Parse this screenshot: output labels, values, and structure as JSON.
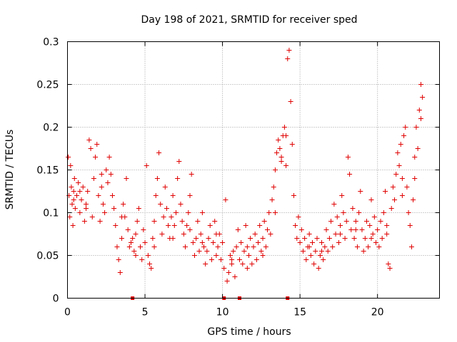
{
  "chart_data": {
    "type": "scatter",
    "title": "Day 198 of 2021, SRMTID for receiver sped",
    "xlabel": "GPS time / hours",
    "ylabel": "SRMTID / TECUs",
    "xlim": [
      0,
      24
    ],
    "ylim": [
      0,
      0.3
    ],
    "x_tick_labels": [
      "0",
      "5",
      "10",
      "15",
      "20"
    ],
    "x_ticks": [
      0,
      5,
      10,
      15,
      20
    ],
    "y_tick_labels": [
      "0",
      "0.05",
      "0.1",
      "0.15",
      "0.2",
      "0.25",
      "0.3"
    ],
    "y_ticks": [
      0,
      0.05,
      0.1,
      0.15,
      0.2,
      0.25,
      0.3
    ],
    "grid": true,
    "marker": "plus",
    "color": "#e00000",
    "description_points": "dense scatter of SRMTID values by hour; points listed as [hour, value]",
    "points": [
      [
        0.05,
        0.165
      ],
      [
        0.1,
        0.12
      ],
      [
        0.15,
        0.095
      ],
      [
        0.2,
        0.155
      ],
      [
        0.25,
        0.13
      ],
      [
        0.3,
        0.11
      ],
      [
        0.35,
        0.085
      ],
      [
        0.4,
        0.125
      ],
      [
        0.45,
        0.14
      ],
      [
        0.5,
        0.105
      ],
      [
        0.6,
        0.12
      ],
      [
        0.7,
        0.135
      ],
      [
        0.8,
        0.1
      ],
      [
        0.9,
        0.115
      ],
      [
        1.0,
        0.13
      ],
      [
        1.1,
        0.09
      ],
      [
        1.2,
        0.11
      ],
      [
        1.3,
        0.125
      ],
      [
        1.4,
        0.185
      ],
      [
        1.5,
        0.175
      ],
      [
        1.6,
        0.095
      ],
      [
        1.7,
        0.14
      ],
      [
        1.8,
        0.165
      ],
      [
        1.9,
        0.18
      ],
      [
        2.0,
        0.12
      ],
      [
        2.1,
        0.09
      ],
      [
        2.2,
        0.13
      ],
      [
        2.3,
        0.11
      ],
      [
        2.4,
        0.1
      ],
      [
        2.5,
        0.15
      ],
      [
        2.6,
        0.135
      ],
      [
        2.7,
        0.165
      ],
      [
        2.8,
        0.145
      ],
      [
        2.9,
        0.12
      ],
      [
        3.0,
        0.105
      ],
      [
        3.1,
        0.085
      ],
      [
        3.2,
        0.06
      ],
      [
        3.3,
        0.045
      ],
      [
        3.4,
        0.03
      ],
      [
        3.5,
        0.07
      ],
      [
        3.6,
        0.11
      ],
      [
        3.7,
        0.095
      ],
      [
        3.8,
        0.14
      ],
      [
        3.9,
        0.08
      ],
      [
        4.0,
        0.06
      ],
      [
        4.1,
        0.065
      ],
      [
        4.2,
        0.07
      ],
      [
        4.3,
        0.055
      ],
      [
        4.4,
        0.075
      ],
      [
        4.5,
        0.09
      ],
      [
        4.6,
        0.105
      ],
      [
        4.7,
        0.06
      ],
      [
        4.8,
        0.045
      ],
      [
        4.9,
        0.08
      ],
      [
        5.0,
        0.065
      ],
      [
        5.1,
        0.155
      ],
      [
        5.2,
        0.05
      ],
      [
        5.3,
        0.04
      ],
      [
        5.4,
        0.035
      ],
      [
        5.5,
        0.07
      ],
      [
        5.6,
        0.09
      ],
      [
        5.7,
        0.12
      ],
      [
        5.8,
        0.14
      ],
      [
        5.9,
        0.17
      ],
      [
        6.0,
        0.11
      ],
      [
        6.1,
        0.075
      ],
      [
        6.2,
        0.095
      ],
      [
        6.3,
        0.13
      ],
      [
        6.4,
        0.105
      ],
      [
        6.5,
        0.085
      ],
      [
        6.6,
        0.07
      ],
      [
        6.7,
        0.095
      ],
      [
        6.8,
        0.12
      ],
      [
        6.9,
        0.085
      ],
      [
        7.0,
        0.1
      ],
      [
        7.1,
        0.14
      ],
      [
        7.2,
        0.16
      ],
      [
        7.3,
        0.11
      ],
      [
        7.4,
        0.09
      ],
      [
        7.5,
        0.075
      ],
      [
        7.6,
        0.06
      ],
      [
        7.7,
        0.085
      ],
      [
        7.8,
        0.1
      ],
      [
        7.9,
        0.12
      ],
      [
        8.0,
        0.145
      ],
      [
        8.1,
        0.065
      ],
      [
        8.2,
        0.05
      ],
      [
        8.3,
        0.07
      ],
      [
        8.4,
        0.09
      ],
      [
        8.5,
        0.055
      ],
      [
        8.6,
        0.075
      ],
      [
        8.7,
        0.1
      ],
      [
        8.8,
        0.06
      ],
      [
        8.9,
        0.04
      ],
      [
        9.0,
        0.055
      ],
      [
        9.1,
        0.07
      ],
      [
        9.2,
        0.085
      ],
      [
        9.3,
        0.045
      ],
      [
        9.4,
        0.065
      ],
      [
        9.5,
        0.09
      ],
      [
        9.6,
        0.05
      ],
      [
        9.7,
        0.06
      ],
      [
        9.8,
        0.075
      ],
      [
        9.9,
        0.045
      ],
      [
        10.0,
        0.065
      ],
      [
        10.1,
        0.035
      ],
      [
        10.2,
        0.115
      ],
      [
        10.3,
        0.02
      ],
      [
        10.4,
        0.03
      ],
      [
        10.5,
        0.05
      ],
      [
        10.6,
        0.04
      ],
      [
        10.7,
        0.055
      ],
      [
        10.8,
        0.025
      ],
      [
        10.9,
        0.06
      ],
      [
        11.0,
        0.08
      ],
      [
        11.1,
        0.045
      ],
      [
        11.2,
        0.065
      ],
      [
        11.3,
        0.04
      ],
      [
        11.4,
        0.055
      ],
      [
        11.5,
        0.085
      ],
      [
        11.6,
        0.035
      ],
      [
        11.7,
        0.05
      ],
      [
        11.8,
        0.07
      ],
      [
        11.9,
        0.04
      ],
      [
        12.0,
        0.06
      ],
      [
        12.1,
        0.075
      ],
      [
        12.2,
        0.045
      ],
      [
        12.3,
        0.065
      ],
      [
        12.4,
        0.085
      ],
      [
        12.5,
        0.055
      ],
      [
        12.6,
        0.07
      ],
      [
        12.7,
        0.09
      ],
      [
        12.8,
        0.06
      ],
      [
        12.9,
        0.08
      ],
      [
        13.0,
        0.1
      ],
      [
        13.1,
        0.075
      ],
      [
        13.2,
        0.115
      ],
      [
        13.3,
        0.13
      ],
      [
        13.4,
        0.15
      ],
      [
        13.5,
        0.17
      ],
      [
        13.6,
        0.185
      ],
      [
        13.7,
        0.175
      ],
      [
        13.8,
        0.16
      ],
      [
        13.9,
        0.19
      ],
      [
        14.0,
        0.2
      ],
      [
        14.1,
        0.155
      ],
      [
        14.2,
        0.28
      ],
      [
        14.3,
        0.29
      ],
      [
        14.4,
        0.23
      ],
      [
        14.5,
        0.18
      ],
      [
        14.6,
        0.12
      ],
      [
        14.7,
        0.085
      ],
      [
        14.8,
        0.07
      ],
      [
        14.9,
        0.095
      ],
      [
        15.0,
        0.065
      ],
      [
        15.1,
        0.08
      ],
      [
        15.2,
        0.055
      ],
      [
        15.3,
        0.07
      ],
      [
        15.4,
        0.045
      ],
      [
        15.5,
        0.06
      ],
      [
        15.6,
        0.075
      ],
      [
        15.7,
        0.05
      ],
      [
        15.8,
        0.065
      ],
      [
        15.9,
        0.04
      ],
      [
        16.0,
        0.055
      ],
      [
        16.1,
        0.07
      ],
      [
        16.2,
        0.035
      ],
      [
        16.3,
        0.05
      ],
      [
        16.4,
        0.065
      ],
      [
        16.5,
        0.045
      ],
      [
        16.6,
        0.06
      ],
      [
        16.7,
        0.08
      ],
      [
        16.8,
        0.055
      ],
      [
        16.9,
        0.07
      ],
      [
        17.0,
        0.09
      ],
      [
        17.1,
        0.06
      ],
      [
        17.2,
        0.11
      ],
      [
        17.3,
        0.075
      ],
      [
        17.4,
        0.095
      ],
      [
        17.5,
        0.065
      ],
      [
        17.6,
        0.085
      ],
      [
        17.7,
        0.12
      ],
      [
        17.8,
        0.1
      ],
      [
        17.9,
        0.07
      ],
      [
        18.0,
        0.09
      ],
      [
        18.1,
        0.165
      ],
      [
        18.2,
        0.145
      ],
      [
        18.3,
        0.08
      ],
      [
        18.4,
        0.105
      ],
      [
        18.5,
        0.07
      ],
      [
        18.6,
        0.09
      ],
      [
        18.7,
        0.06
      ],
      [
        18.8,
        0.1
      ],
      [
        18.9,
        0.125
      ],
      [
        19.0,
        0.08
      ],
      [
        19.1,
        0.055
      ],
      [
        19.2,
        0.07
      ],
      [
        19.3,
        0.09
      ],
      [
        19.4,
        0.06
      ],
      [
        19.5,
        0.085
      ],
      [
        19.6,
        0.115
      ],
      [
        19.7,
        0.075
      ],
      [
        19.8,
        0.095
      ],
      [
        19.9,
        0.065
      ],
      [
        20.0,
        0.08
      ],
      [
        20.1,
        0.06
      ],
      [
        20.2,
        0.09
      ],
      [
        20.3,
        0.07
      ],
      [
        20.4,
        0.1
      ],
      [
        20.5,
        0.125
      ],
      [
        20.6,
        0.085
      ],
      [
        20.7,
        0.04
      ],
      [
        20.8,
        0.035
      ],
      [
        20.9,
        0.105
      ],
      [
        21.0,
        0.13
      ],
      [
        21.1,
        0.115
      ],
      [
        21.2,
        0.145
      ],
      [
        21.3,
        0.17
      ],
      [
        21.4,
        0.155
      ],
      [
        21.5,
        0.18
      ],
      [
        21.6,
        0.14
      ],
      [
        21.7,
        0.19
      ],
      [
        21.8,
        0.2
      ],
      [
        21.9,
        0.13
      ],
      [
        22.0,
        0.1
      ],
      [
        22.1,
        0.085
      ],
      [
        22.2,
        0.06
      ],
      [
        22.3,
        0.115
      ],
      [
        22.4,
        0.165
      ],
      [
        22.5,
        0.2
      ],
      [
        22.6,
        0.175
      ],
      [
        22.7,
        0.22
      ],
      [
        22.8,
        0.25
      ],
      [
        22.9,
        0.235
      ],
      [
        0.4,
        0.115
      ],
      [
        0.8,
        0.125
      ],
      [
        1.2,
        0.105
      ],
      [
        2.2,
        0.145
      ],
      [
        3.5,
        0.095
      ],
      [
        4.4,
        0.05
      ],
      [
        5.6,
        0.06
      ],
      [
        6.8,
        0.07
      ],
      [
        7.9,
        0.08
      ],
      [
        8.7,
        0.065
      ],
      [
        9.6,
        0.075
      ],
      [
        10.6,
        0.045
      ],
      [
        11.6,
        0.06
      ],
      [
        12.6,
        0.05
      ],
      [
        13.4,
        0.1
      ],
      [
        13.8,
        0.165
      ],
      [
        14.1,
        0.19
      ],
      [
        15.6,
        0.06
      ],
      [
        16.4,
        0.055
      ],
      [
        17.6,
        0.075
      ],
      [
        18.6,
        0.08
      ],
      [
        19.6,
        0.07
      ],
      [
        20.6,
        0.075
      ],
      [
        21.6,
        0.12
      ],
      [
        22.4,
        0.14
      ],
      [
        22.8,
        0.21
      ]
    ],
    "zero_markers": [
      4.2,
      10.1,
      11.1,
      14.2
    ]
  }
}
